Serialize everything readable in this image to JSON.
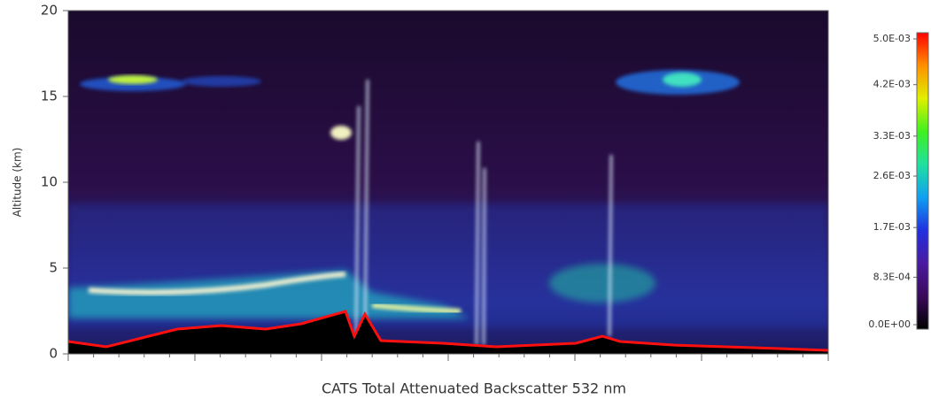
{
  "chart_data": {
    "type": "curtain",
    "title": "CATS Total Attenuated Backscatter 532 nm",
    "y_label": "Altitude (km)",
    "ylim": [
      0,
      20
    ],
    "yticks": [
      0,
      5,
      10,
      15,
      20
    ],
    "colorbar": {
      "lim": [
        0,
        0.005
      ],
      "ticks": [
        {
          "value": 0.005,
          "label": "5.0E-03"
        },
        {
          "value": 0.0042,
          "label": "4.2E-03"
        },
        {
          "value": 0.0033,
          "label": "3.3E-03"
        },
        {
          "value": 0.0026,
          "label": "2.6E-03"
        },
        {
          "value": 0.0017,
          "label": "1.7E-03"
        },
        {
          "value": 0.00083,
          "label": "8.3E-04"
        },
        {
          "value": 0,
          "label": "0.0E+00"
        }
      ],
      "colormap": [
        "#000000",
        "#3a0a5a",
        "#4a1aa0",
        "#2030e0",
        "#10a0f0",
        "#20e0a0",
        "#40f020",
        "#e0f000",
        "#ff9000",
        "#ff0000"
      ]
    }
  }
}
